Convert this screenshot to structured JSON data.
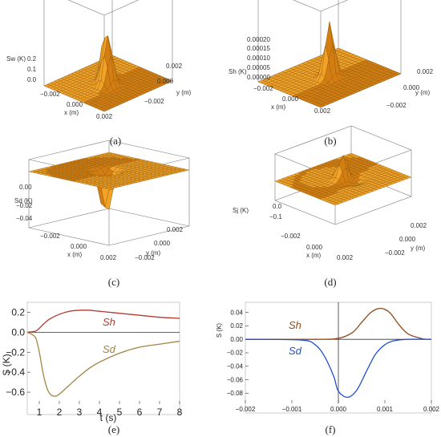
{
  "figure": {
    "panels": [
      {
        "id": "a",
        "caption": "(a)"
      },
      {
        "id": "b",
        "caption": "(b)"
      },
      {
        "id": "c",
        "caption": "(c)"
      },
      {
        "id": "d",
        "caption": "(d)"
      },
      {
        "id": "e",
        "caption": "(e)"
      },
      {
        "id": "f",
        "caption": "(f)"
      }
    ]
  },
  "colors": {
    "surface": "#f2a227",
    "surface_dark": "#d47d10",
    "mesh": "#8a5a10",
    "sh_e": "#b03a2e",
    "sd_e": "#a08544",
    "sh_f": "#8e4a1c",
    "sd_f": "#1f4fd0"
  },
  "chart_data": [
    {
      "type": "surface",
      "panel": "a",
      "zlabel": "Sw (K)",
      "xlabel": "x (m)",
      "ylabel": "y (m)",
      "z_ticks": [
        "0.2",
        "0.1",
        "0.0"
      ],
      "x_ticks": [
        "−0.002",
        "0.000",
        "0.002"
      ],
      "y_ticks": [
        "0.002",
        "0.000",
        "−0.002"
      ],
      "zlim": [
        0,
        0.2
      ],
      "xlim": [
        -0.002,
        0.002
      ],
      "ylim": [
        -0.002,
        0.002
      ]
    },
    {
      "type": "surface",
      "panel": "b",
      "zlabel": "Sh (K)",
      "xlabel": "x (m)",
      "ylabel": "y (m)",
      "z_ticks": [
        "0.00020",
        "0.00015",
        "0.00010",
        "0.00005",
        "0.00000"
      ],
      "x_ticks": [
        "−0.002",
        "0.000",
        "0.002"
      ],
      "y_ticks": [
        "0.002",
        "0.000",
        "−0.002"
      ],
      "zlim": [
        0,
        0.0002
      ],
      "xlim": [
        -0.002,
        0.002
      ],
      "ylim": [
        -0.002,
        0.002
      ]
    },
    {
      "type": "surface",
      "panel": "c",
      "zlabel": "Sd (K)",
      "xlabel": "x (m)",
      "ylabel": "y (m)",
      "z_ticks": [
        "0.00",
        "−0.02",
        "−0.04"
      ],
      "x_ticks": [
        "−0.002",
        "0.000",
        "0.002"
      ],
      "y_ticks": [
        "0.002",
        "0.000",
        "−0.002"
      ],
      "zlim": [
        -0.05,
        0
      ],
      "xlim": [
        -0.002,
        0.002
      ],
      "ylim": [
        -0.002,
        0.002
      ]
    },
    {
      "type": "surface",
      "panel": "d",
      "zlabel": "Sj (K)",
      "xlabel": "x (m)",
      "ylabel": "y (m)",
      "z_ticks": [
        "0.0",
        "−0.1"
      ],
      "x_ticks": [
        "−0.002",
        "0.000",
        "0.002"
      ],
      "y_ticks": [
        "0.002",
        "0.000",
        "−0.002"
      ],
      "zlim": [
        -0.1,
        0.05
      ],
      "xlim": [
        -0.002,
        0.002
      ],
      "ylim": [
        -0.002,
        0.002
      ]
    },
    {
      "type": "line",
      "panel": "e",
      "xlabel": "t (s)",
      "ylabel": "S (K)",
      "xlim": [
        0.4,
        8
      ],
      "ylim": [
        -0.72,
        0.3
      ],
      "x_ticks": [
        1,
        2,
        3,
        4,
        5,
        6,
        7,
        8
      ],
      "y_ticks": [
        0.2,
        0.0,
        -0.2,
        -0.4,
        -0.6
      ],
      "y_tick_labels": [
        "0.2",
        "0.0",
        "−0.2",
        "−0.4",
        "−0.6"
      ],
      "series": [
        {
          "name": "Sh",
          "x": [
            0.4,
            0.8,
            1.0,
            1.2,
            1.5,
            2.0,
            2.5,
            3.0,
            3.5,
            4.0,
            5.0,
            6.0,
            7.0,
            8.0
          ],
          "y": [
            0.0,
            0.01,
            0.04,
            0.08,
            0.13,
            0.18,
            0.21,
            0.22,
            0.22,
            0.21,
            0.19,
            0.17,
            0.15,
            0.14
          ]
        },
        {
          "name": "Sd",
          "x": [
            0.4,
            0.8,
            1.0,
            1.2,
            1.4,
            1.6,
            1.8,
            2.0,
            2.5,
            3.0,
            3.5,
            4.0,
            5.0,
            6.0,
            7.0,
            8.0
          ],
          "y": [
            0.0,
            -0.05,
            -0.2,
            -0.42,
            -0.57,
            -0.63,
            -0.64,
            -0.62,
            -0.53,
            -0.44,
            -0.36,
            -0.3,
            -0.21,
            -0.15,
            -0.12,
            -0.09
          ]
        }
      ]
    },
    {
      "type": "line",
      "panel": "f",
      "xlabel": "",
      "ylabel": "S (K)",
      "xlim": [
        -0.002,
        0.002
      ],
      "ylim": [
        -0.095,
        0.055
      ],
      "x_ticks": [
        -0.002,
        -0.001,
        0.0,
        0.001,
        0.002
      ],
      "x_tick_labels": [
        "−0.002",
        "−0.001",
        "0.000",
        "0.001",
        "0.002"
      ],
      "y_ticks": [
        0.04,
        0.02,
        0.0,
        -0.02,
        -0.04,
        -0.06,
        -0.08
      ],
      "y_tick_labels": [
        "0.04",
        "0.02",
        "0.00",
        "−0.02",
        "−0.04",
        "−0.06",
        "−0.08"
      ],
      "series": [
        {
          "name": "Sh",
          "x": [
            -0.002,
            -0.0005,
            0.0,
            0.0003,
            0.0005,
            0.0007,
            0.0009,
            0.0011,
            0.0013,
            0.0015,
            0.0018,
            0.002
          ],
          "y": [
            0.0,
            0.0,
            0.0015,
            0.01,
            0.025,
            0.04,
            0.046,
            0.04,
            0.022,
            0.008,
            0.001,
            0.0
          ]
        },
        {
          "name": "Sd",
          "x": [
            -0.002,
            -0.0008,
            -0.0005,
            -0.0003,
            -0.0001,
            0.0,
            0.0002,
            0.0004,
            0.0006,
            0.0008,
            0.001,
            0.0012,
            0.0015,
            0.002
          ],
          "y": [
            0.0,
            -0.001,
            -0.008,
            -0.025,
            -0.055,
            -0.077,
            -0.086,
            -0.075,
            -0.048,
            -0.022,
            -0.008,
            -0.002,
            0.0,
            0.0
          ]
        }
      ]
    }
  ]
}
